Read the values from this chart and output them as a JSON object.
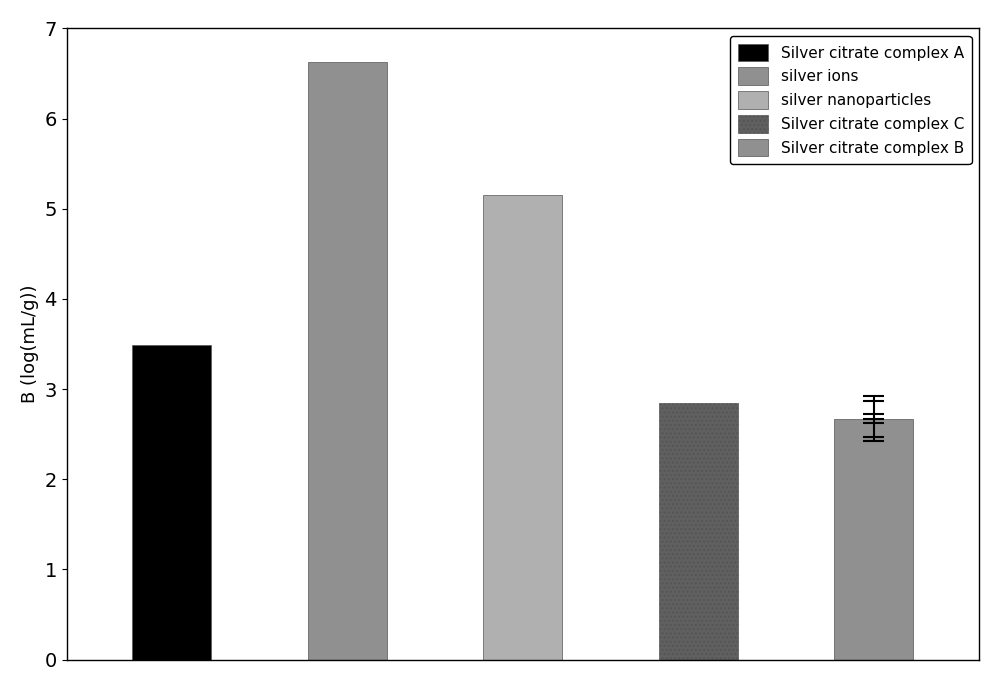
{
  "categories": [
    "Silver citrate complex A",
    "silver ions",
    "silver nanoparticles",
    "Silver citrate complex C",
    "Silver citrate complex B"
  ],
  "values": [
    3.49,
    6.63,
    5.15,
    2.85,
    2.67
  ],
  "bar_colors": [
    "#000000",
    "#909090",
    "#b0b0b0",
    "#606060",
    "#909090"
  ],
  "bar_hatches": [
    null,
    null,
    null,
    "....",
    null
  ],
  "error_bar_values": [
    null,
    null,
    null,
    null,
    [
      2.42,
      2.92
    ]
  ],
  "ylabel": "B (log(mL/g))",
  "ylim": [
    0,
    7
  ],
  "yticks": [
    0,
    1,
    2,
    3,
    4,
    5,
    6,
    7
  ],
  "legend_labels": [
    "Silver citrate complex A",
    "silver ions",
    "silver nanoparticles",
    "Silver citrate complex C",
    "Silver citrate complex B"
  ],
  "legend_colors": [
    "#000000",
    "#909090",
    "#b0b0b0",
    "#606060",
    "#909090"
  ],
  "legend_hatches": [
    null,
    null,
    null,
    "....",
    null
  ],
  "background_color": "#ffffff",
  "figure_background": "#ffffff",
  "bar_width": 0.45,
  "font_size": 13,
  "tick_fontsize": 14
}
